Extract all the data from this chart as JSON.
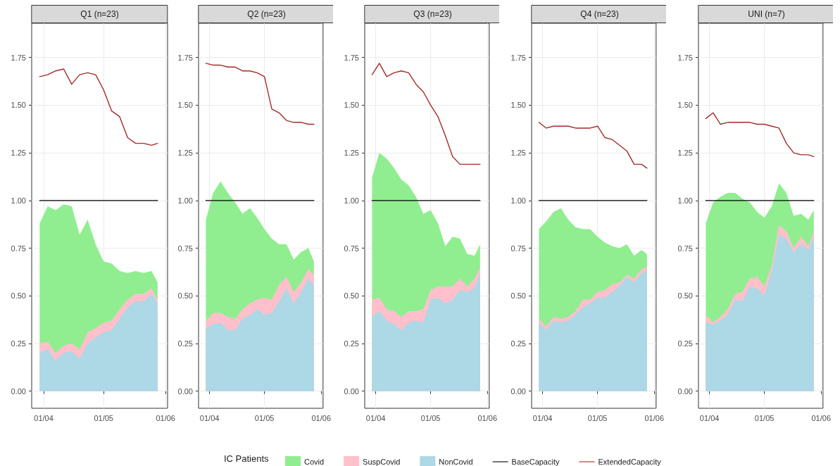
{
  "chart_data": [
    {
      "type": "area",
      "title": "Q1 (n=23)",
      "stacked": true,
      "grid": true,
      "marker": "none",
      "legend": "bottom",
      "legend_title": "IC Patients",
      "x": [
        "--03-30",
        "--04-03",
        "--04-07",
        "--04-11",
        "--04-15",
        "--04-19",
        "--04-23",
        "--04-27",
        "--05-01",
        "--05-05",
        "--05-09",
        "--05-13",
        "--05-17",
        "--05-21",
        "--05-25",
        "--05-28"
      ],
      "xlim": [
        "--03-26",
        "--06-02"
      ],
      "xticks": [
        {
          "value": "--04-01",
          "label": "01/04"
        },
        {
          "value": "--05-01",
          "label": "01/05"
        },
        {
          "value": "--06-01",
          "label": "01/06"
        }
      ],
      "ylim": [
        -0.09,
        1.93
      ],
      "yticks": [
        {
          "value": 0,
          "label": "0.00"
        },
        {
          "value": 0.25,
          "label": "0.25"
        },
        {
          "value": 0.5,
          "label": "0.50"
        },
        {
          "value": 0.75,
          "label": "0.75"
        },
        {
          "value": 1,
          "label": "1.00"
        },
        {
          "value": 1.25,
          "label": "1.25"
        },
        {
          "value": 1.5,
          "label": "1.50"
        },
        {
          "value": 1.75,
          "label": "1.75"
        }
      ],
      "series": [
        {
          "name": "NonCovid",
          "color": "#add8e6",
          "values": [
            0.2,
            0.22,
            0.16,
            0.2,
            0.21,
            0.17,
            0.25,
            0.28,
            0.31,
            0.32,
            0.38,
            0.44,
            0.47,
            0.47,
            0.51,
            0.46
          ]
        },
        {
          "name": "SuspCovid",
          "color": "#ffc0cb",
          "values": [
            0.05,
            0.04,
            0.04,
            0.04,
            0.04,
            0.05,
            0.06,
            0.05,
            0.05,
            0.05,
            0.05,
            0.04,
            0.04,
            0.04,
            0.03,
            0.02
          ]
        },
        {
          "name": "Covid",
          "color": "#90ee90",
          "values": [
            0.63,
            0.71,
            0.75,
            0.74,
            0.72,
            0.6,
            0.59,
            0.44,
            0.32,
            0.3,
            0.2,
            0.14,
            0.12,
            0.11,
            0.09,
            0.09
          ]
        },
        {
          "name": "BaseCapacity",
          "type": "line",
          "color": "#000000",
          "values": [
            1,
            1,
            1,
            1,
            1,
            1,
            1,
            1,
            1,
            1,
            1,
            1,
            1,
            1,
            1,
            1
          ]
        },
        {
          "name": "ExtendedCapacity",
          "type": "line",
          "color": "#a52a2a",
          "values": [
            1.65,
            1.66,
            1.68,
            1.69,
            1.61,
            1.66,
            1.67,
            1.66,
            1.58,
            1.47,
            1.44,
            1.33,
            1.3,
            1.3,
            1.29,
            1.3
          ]
        }
      ]
    },
    {
      "type": "area",
      "title": "Q2 (n=23)",
      "stacked": true,
      "grid": true,
      "marker": "none",
      "x": [
        "--03-30",
        "--04-03",
        "--04-07",
        "--04-11",
        "--04-15",
        "--04-19",
        "--04-23",
        "--04-27",
        "--05-01",
        "--05-05",
        "--05-09",
        "--05-13",
        "--05-17",
        "--05-21",
        "--05-25",
        "--05-28"
      ],
      "xlim": [
        "--03-26",
        "--06-02"
      ],
      "xticks": [
        {
          "value": "--04-01",
          "label": "01/04"
        },
        {
          "value": "--05-01",
          "label": "01/05"
        },
        {
          "value": "--06-01",
          "label": "01/06"
        }
      ],
      "ylim": [
        -0.09,
        1.93
      ],
      "yticks": [
        {
          "value": 0,
          "label": "0.00"
        },
        {
          "value": 0.25,
          "label": "0.25"
        },
        {
          "value": 0.5,
          "label": "0.50"
        },
        {
          "value": 0.75,
          "label": "0.75"
        },
        {
          "value": 1,
          "label": "1.00"
        },
        {
          "value": 1.25,
          "label": "1.25"
        },
        {
          "value": 1.5,
          "label": "1.50"
        },
        {
          "value": 1.75,
          "label": "1.75"
        }
      ],
      "series": [
        {
          "color": "#add8e6",
          "values": [
            0.33,
            0.35,
            0.36,
            0.32,
            0.32,
            0.38,
            0.4,
            0.43,
            0.4,
            0.41,
            0.47,
            0.54,
            0.46,
            0.52,
            0.59,
            0.55
          ]
        },
        {
          "color": "#ffc0cb",
          "values": [
            0.04,
            0.06,
            0.05,
            0.07,
            0.06,
            0.05,
            0.06,
            0.05,
            0.09,
            0.07,
            0.09,
            0.06,
            0.06,
            0.05,
            0.05,
            0.06
          ]
        },
        {
          "color": "#90ee90",
          "values": [
            0.53,
            0.63,
            0.69,
            0.65,
            0.61,
            0.5,
            0.5,
            0.43,
            0.36,
            0.32,
            0.21,
            0.17,
            0.17,
            0.16,
            0.11,
            0.07
          ]
        },
        {
          "type": "line",
          "color": "#000000",
          "values": [
            1,
            1,
            1,
            1,
            1,
            1,
            1,
            1,
            1,
            1,
            1,
            1,
            1,
            1,
            1,
            1
          ]
        },
        {
          "type": "line",
          "color": "#a52a2a",
          "values": [
            1.72,
            1.71,
            1.71,
            1.7,
            1.7,
            1.68,
            1.68,
            1.67,
            1.65,
            1.48,
            1.46,
            1.42,
            1.41,
            1.41,
            1.4,
            1.4
          ]
        }
      ]
    },
    {
      "type": "area",
      "title": "Q3 (n=23)",
      "stacked": true,
      "grid": true,
      "marker": "none",
      "x": [
        "--03-30",
        "--04-03",
        "--04-07",
        "--04-11",
        "--04-15",
        "--04-19",
        "--04-23",
        "--04-27",
        "--05-01",
        "--05-05",
        "--05-09",
        "--05-13",
        "--05-17",
        "--05-21",
        "--05-25",
        "--05-28"
      ],
      "xlim": [
        "--03-26",
        "--06-02"
      ],
      "xticks": [
        {
          "value": "--04-01",
          "label": "01/04"
        },
        {
          "value": "--05-01",
          "label": "01/05"
        },
        {
          "value": "--06-01",
          "label": "01/06"
        }
      ],
      "ylim": [
        -0.09,
        1.93
      ],
      "yticks": [
        {
          "value": 0,
          "label": "0.00"
        },
        {
          "value": 0.25,
          "label": "0.25"
        },
        {
          "value": 0.5,
          "label": "0.50"
        },
        {
          "value": 0.75,
          "label": "0.75"
        },
        {
          "value": 1,
          "label": "1.00"
        },
        {
          "value": 1.25,
          "label": "1.25"
        },
        {
          "value": 1.5,
          "label": "1.50"
        },
        {
          "value": 1.75,
          "label": "1.75"
        }
      ],
      "series": [
        {
          "color": "#add8e6",
          "values": [
            0.39,
            0.42,
            0.37,
            0.35,
            0.32,
            0.36,
            0.37,
            0.36,
            0.48,
            0.49,
            0.46,
            0.48,
            0.53,
            0.52,
            0.54,
            0.62
          ]
        },
        {
          "color": "#ffc0cb",
          "values": [
            0.09,
            0.07,
            0.06,
            0.07,
            0.07,
            0.06,
            0.05,
            0.07,
            0.05,
            0.06,
            0.09,
            0.07,
            0.06,
            0.03,
            0.05,
            0.03
          ]
        },
        {
          "color": "#90ee90",
          "values": [
            0.64,
            0.76,
            0.79,
            0.75,
            0.72,
            0.66,
            0.6,
            0.5,
            0.42,
            0.33,
            0.21,
            0.26,
            0.21,
            0.17,
            0.12,
            0.12
          ]
        },
        {
          "type": "line",
          "color": "#000000",
          "values": [
            1,
            1,
            1,
            1,
            1,
            1,
            1,
            1,
            1,
            1,
            1,
            1,
            1,
            1,
            1,
            1
          ]
        },
        {
          "type": "line",
          "color": "#a52a2a",
          "values": [
            1.66,
            1.72,
            1.65,
            1.67,
            1.68,
            1.67,
            1.61,
            1.57,
            1.5,
            1.44,
            1.34,
            1.23,
            1.19,
            1.19,
            1.19,
            1.19
          ]
        }
      ]
    },
    {
      "type": "area",
      "title": "Q4 (n=23)",
      "stacked": true,
      "grid": true,
      "marker": "none",
      "x": [
        "--03-30",
        "--04-03",
        "--04-07",
        "--04-11",
        "--04-15",
        "--04-19",
        "--04-23",
        "--04-27",
        "--05-01",
        "--05-05",
        "--05-09",
        "--05-13",
        "--05-17",
        "--05-21",
        "--05-25",
        "--05-28"
      ],
      "xlim": [
        "--03-26",
        "--06-02"
      ],
      "xticks": [
        {
          "value": "--04-01",
          "label": "01/04"
        },
        {
          "value": "--05-01",
          "label": "01/05"
        },
        {
          "value": "--06-01",
          "label": "01/06"
        }
      ],
      "ylim": [
        -0.09,
        1.93
      ],
      "yticks": [
        {
          "value": 0,
          "label": "0.00"
        },
        {
          "value": 0.25,
          "label": "0.25"
        },
        {
          "value": 0.5,
          "label": "0.50"
        },
        {
          "value": 0.75,
          "label": "0.75"
        },
        {
          "value": 1,
          "label": "1.00"
        },
        {
          "value": 1.25,
          "label": "1.25"
        },
        {
          "value": 1.5,
          "label": "1.50"
        },
        {
          "value": 1.75,
          "label": "1.75"
        }
      ],
      "series": [
        {
          "color": "#add8e6",
          "values": [
            0.36,
            0.32,
            0.37,
            0.36,
            0.37,
            0.4,
            0.44,
            0.46,
            0.49,
            0.49,
            0.52,
            0.55,
            0.6,
            0.57,
            0.62,
            0.63
          ]
        },
        {
          "color": "#ffc0cb",
          "values": [
            0.02,
            0.02,
            0.02,
            0.02,
            0.02,
            0.02,
            0.04,
            0.02,
            0.03,
            0.04,
            0.04,
            0.02,
            0.01,
            0.02,
            0.02,
            0.02
          ]
        },
        {
          "color": "#90ee90",
          "values": [
            0.47,
            0.55,
            0.55,
            0.58,
            0.51,
            0.44,
            0.37,
            0.37,
            0.29,
            0.25,
            0.2,
            0.18,
            0.16,
            0.12,
            0.1,
            0.07
          ]
        },
        {
          "type": "line",
          "color": "#000000",
          "values": [
            1,
            1,
            1,
            1,
            1,
            1,
            1,
            1,
            1,
            1,
            1,
            1,
            1,
            1,
            1,
            1
          ]
        },
        {
          "type": "line",
          "color": "#a52a2a",
          "values": [
            1.41,
            1.38,
            1.39,
            1.39,
            1.39,
            1.38,
            1.38,
            1.38,
            1.39,
            1.33,
            1.32,
            1.29,
            1.26,
            1.19,
            1.19,
            1.17
          ]
        }
      ]
    },
    {
      "type": "area",
      "title": "UNI (n=7)",
      "stacked": true,
      "grid": true,
      "marker": "none",
      "x": [
        "--03-30",
        "--04-03",
        "--04-07",
        "--04-11",
        "--04-15",
        "--04-19",
        "--04-23",
        "--04-27",
        "--05-01",
        "--05-05",
        "--05-09",
        "--05-13",
        "--05-17",
        "--05-21",
        "--05-25",
        "--05-28"
      ],
      "xlim": [
        "--03-26",
        "--06-02"
      ],
      "xticks": [
        {
          "value": "--04-01",
          "label": "01/04"
        },
        {
          "value": "--05-01",
          "label": "01/05"
        },
        {
          "value": "--06-01",
          "label": "01/06"
        }
      ],
      "ylim": [
        -0.09,
        1.93
      ],
      "yticks": [
        {
          "value": 0,
          "label": "0.00"
        },
        {
          "value": 0.25,
          "label": "0.25"
        },
        {
          "value": 0.5,
          "label": "0.50"
        },
        {
          "value": 0.75,
          "label": "0.75"
        },
        {
          "value": 1,
          "label": "1.00"
        },
        {
          "value": 1.25,
          "label": "1.25"
        },
        {
          "value": 1.5,
          "label": "1.50"
        },
        {
          "value": 1.75,
          "label": "1.75"
        }
      ],
      "series": [
        {
          "color": "#add8e6",
          "values": [
            0.36,
            0.35,
            0.37,
            0.4,
            0.48,
            0.47,
            0.55,
            0.54,
            0.5,
            0.63,
            0.82,
            0.8,
            0.73,
            0.77,
            0.74,
            0.81
          ]
        },
        {
          "color": "#ffc0cb",
          "values": [
            0.04,
            0.01,
            0.02,
            0.03,
            0.03,
            0.05,
            0.04,
            0.06,
            0.05,
            0.03,
            0.05,
            0.04,
            0.02,
            0.04,
            0.02,
            0.03
          ]
        },
        {
          "color": "#90ee90",
          "values": [
            0.48,
            0.63,
            0.63,
            0.61,
            0.53,
            0.49,
            0.4,
            0.34,
            0.36,
            0.31,
            0.22,
            0.2,
            0.17,
            0.12,
            0.14,
            0.11
          ]
        },
        {
          "type": "line",
          "color": "#000000",
          "values": [
            1,
            1,
            1,
            1,
            1,
            1,
            1,
            1,
            1,
            1,
            1,
            1,
            1,
            1,
            1,
            1
          ]
        },
        {
          "type": "line",
          "color": "#a52a2a",
          "values": [
            1.43,
            1.46,
            1.4,
            1.41,
            1.41,
            1.41,
            1.41,
            1.4,
            1.4,
            1.39,
            1.38,
            1.3,
            1.25,
            1.24,
            1.24,
            1.23
          ]
        }
      ]
    }
  ]
}
